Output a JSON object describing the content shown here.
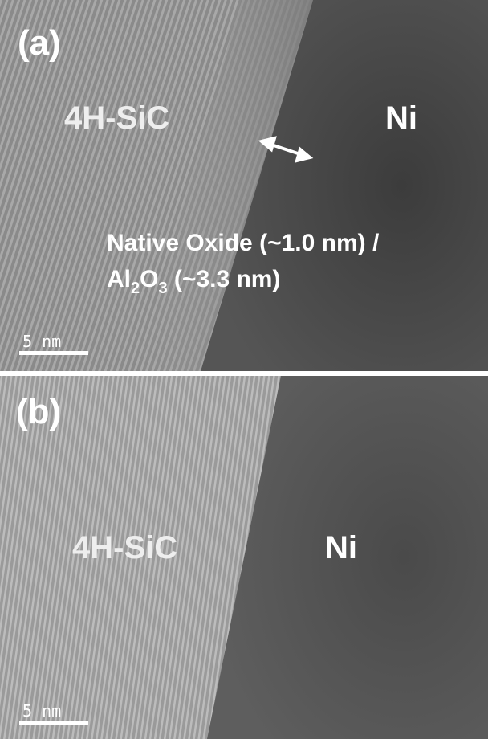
{
  "panels": [
    {
      "label": "(a)",
      "left_region": "4H-SiC",
      "right_region": "Ni",
      "annotation": {
        "line1": "Native Oxide (~1.0 nm) /",
        "line2": [
          "Al",
          "2",
          "O",
          "3",
          " (~3.3 nm)"
        ]
      },
      "scale_bar": "5 nm"
    },
    {
      "label": "(b)",
      "left_region": "4H-SiC",
      "right_region": "Ni",
      "scale_bar": "5 nm"
    }
  ]
}
